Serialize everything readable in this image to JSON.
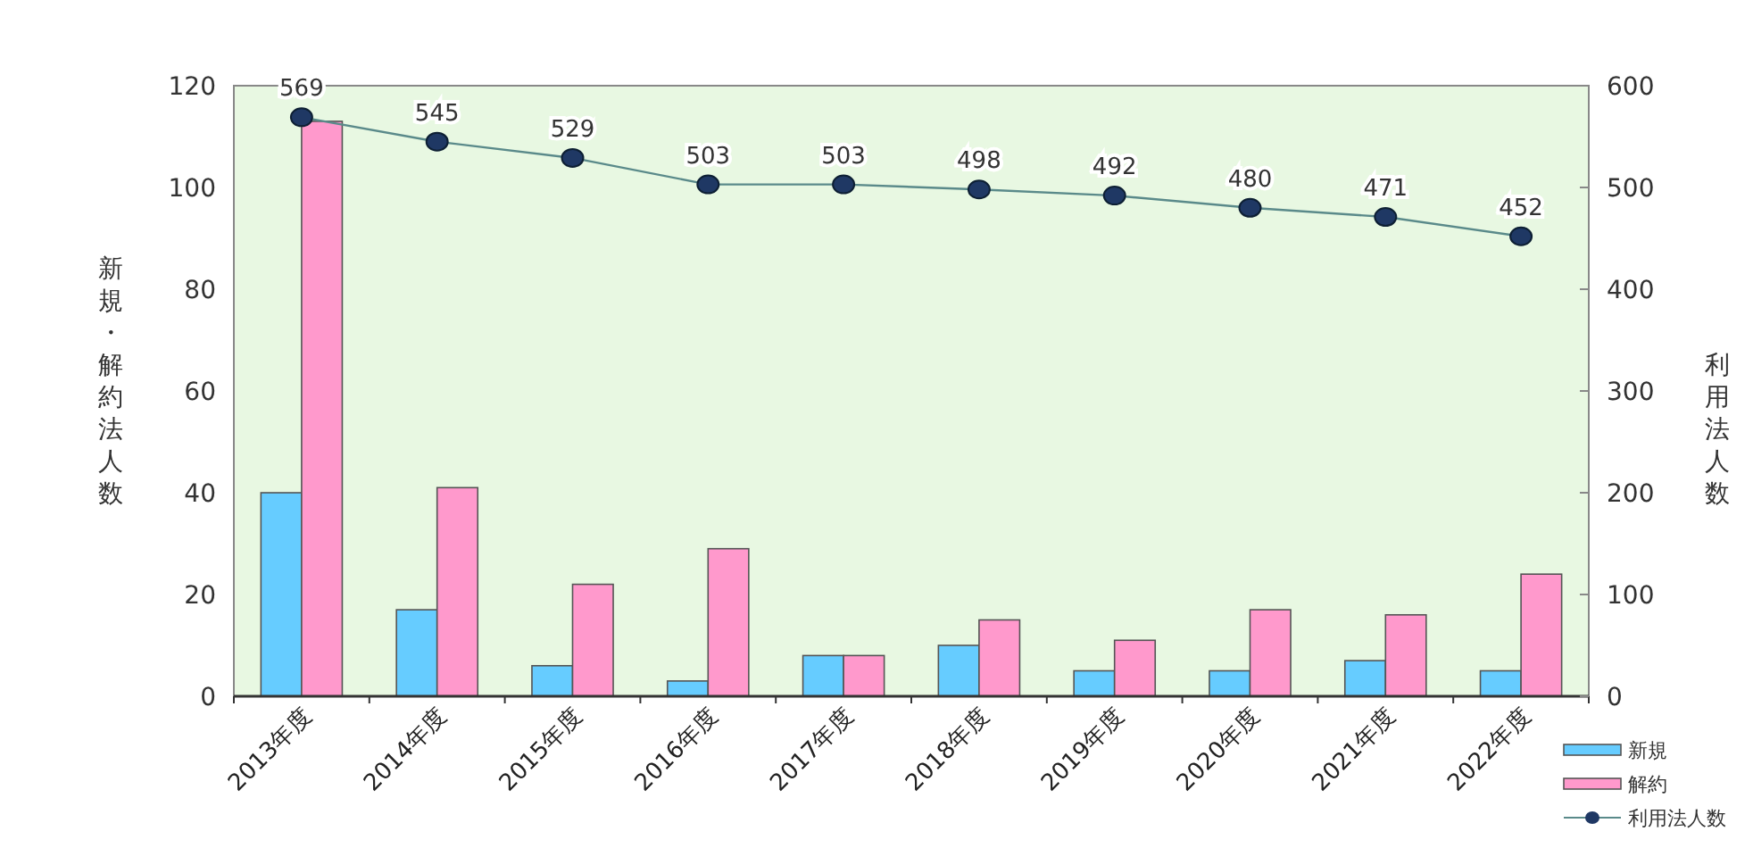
{
  "chart_data": {
    "type": "bar",
    "ylabel": "新規・解約法人数",
    "y2label": "利用法人数",
    "categories": [
      "2013年度",
      "2014年度",
      "2015年度",
      "2016年度",
      "2017年度",
      "2018年度",
      "2019年度",
      "2020年度",
      "2021年度",
      "2022年度"
    ],
    "series": [
      {
        "name": "新規",
        "color": "#66ccff",
        "values": [
          40,
          17,
          6,
          3,
          8,
          10,
          5,
          5,
          7,
          5
        ]
      },
      {
        "name": "解約",
        "color": "#ff99cc",
        "values": [
          113,
          41,
          22,
          29,
          8,
          15,
          11,
          17,
          16,
          24
        ]
      },
      {
        "name": "利用法人数",
        "type": "line",
        "axis": "y2",
        "color": "#1f3864",
        "marker": "circle",
        "data_labels": true,
        "values": [
          569,
          545,
          529,
          503,
          503,
          498,
          492,
          480,
          471,
          452
        ]
      }
    ],
    "ylim": [
      0,
      120
    ],
    "yticks": [
      0,
      20,
      40,
      60,
      80,
      100,
      120
    ],
    "y2lim": [
      0,
      600
    ],
    "y2ticks": [
      0,
      100,
      200,
      300,
      400,
      500,
      600
    ],
    "grid": false,
    "legend": "bottom right"
  }
}
